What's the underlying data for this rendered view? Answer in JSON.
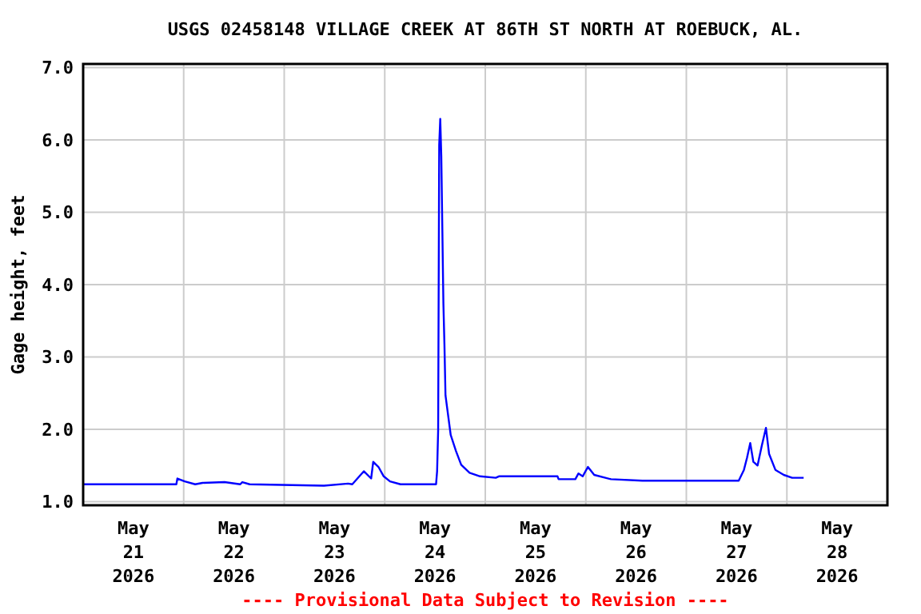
{
  "chart_data": {
    "type": "line",
    "title": "USGS 02458148 VILLAGE CREEK AT 86TH ST NORTH AT ROEBUCK, AL.",
    "ylabel": "Gage height, feet",
    "annotations": [
      "---- Provisional Data Subject to Revision ----"
    ],
    "xlim": [
      "2026-05-21T00:00",
      "2026-05-29T00:00"
    ],
    "xticks": [
      {
        "value": "2026-05-21T00:00",
        "label": null
      },
      {
        "value": "2026-05-21T12:00",
        "label": "May\n21\n2026"
      },
      {
        "value": "2026-05-22T00:00",
        "label": null
      },
      {
        "value": "2026-05-22T12:00",
        "label": "May\n22\n2026"
      },
      {
        "value": "2026-05-23T00:00",
        "label": null
      },
      {
        "value": "2026-05-23T12:00",
        "label": "May\n23\n2026"
      },
      {
        "value": "2026-05-24T00:00",
        "label": null
      },
      {
        "value": "2026-05-24T12:00",
        "label": "May\n24\n2026"
      },
      {
        "value": "2026-05-25T00:00",
        "label": null
      },
      {
        "value": "2026-05-25T12:00",
        "label": "May\n25\n2026"
      },
      {
        "value": "2026-05-26T00:00",
        "label": null
      },
      {
        "value": "2026-05-26T12:00",
        "label": "May\n26\n2026"
      },
      {
        "value": "2026-05-27T00:00",
        "label": null
      },
      {
        "value": "2026-05-27T12:00",
        "label": "May\n27\n2026"
      },
      {
        "value": "2026-05-28T00:00",
        "label": null
      },
      {
        "value": "2026-05-28T12:00",
        "label": "May\n28\n2026"
      },
      {
        "value": "2026-05-29T00:00",
        "label": null
      }
    ],
    "ylim": [
      0.95,
      7.05
    ],
    "yticks": [
      {
        "value": 1,
        "label": "1.0"
      },
      {
        "value": 2,
        "label": "2.0"
      },
      {
        "value": 3,
        "label": "3.0"
      },
      {
        "value": 4,
        "label": "4.0"
      },
      {
        "value": 5,
        "label": "5.0"
      },
      {
        "value": 6,
        "label": "6.0"
      },
      {
        "value": 7,
        "label": "7.0"
      }
    ],
    "grid": true,
    "marker": "none",
    "line_style": "solid",
    "series": [
      {
        "color": "#0000ff",
        "x": [
          "2026-05-21T00:00",
          "2026-05-21T22:15",
          "2026-05-21T22:30",
          "2026-05-22T00:15",
          "2026-05-22T02:45",
          "2026-05-22T04:30",
          "2026-05-22T09:45",
          "2026-05-22T13:30",
          "2026-05-22T14:00",
          "2026-05-22T15:45",
          "2026-05-23T09:30",
          "2026-05-23T15:15",
          "2026-05-23T16:15",
          "2026-05-23T19:00",
          "2026-05-23T20:45",
          "2026-05-23T21:15",
          "2026-05-23T22:30",
          "2026-05-23T23:45",
          "2026-05-24T01:15",
          "2026-05-24T03:45",
          "2026-05-24T12:15",
          "2026-05-24T12:30",
          "2026-05-24T12:45",
          "2026-05-24T13:00",
          "2026-05-24T13:15",
          "2026-05-24T13:30",
          "2026-05-24T14:00",
          "2026-05-24T14:15",
          "2026-05-24T14:30",
          "2026-05-24T15:00",
          "2026-05-24T15:45",
          "2026-05-24T17:00",
          "2026-05-24T18:15",
          "2026-05-24T20:15",
          "2026-05-24T22:45",
          "2026-05-25T02:30",
          "2026-05-25T03:15",
          "2026-05-25T06:00",
          "2026-05-25T17:15",
          "2026-05-25T17:30",
          "2026-05-25T21:30",
          "2026-05-25T22:15",
          "2026-05-25T23:15",
          "2026-05-26T00:30",
          "2026-05-26T02:00",
          "2026-05-26T06:00",
          "2026-05-26T13:30",
          "2026-05-27T12:30",
          "2026-05-27T13:45",
          "2026-05-27T14:30",
          "2026-05-27T15:15",
          "2026-05-27T16:00",
          "2026-05-27T17:00",
          "2026-05-27T18:00",
          "2026-05-27T19:00",
          "2026-05-27T19:45",
          "2026-05-27T21:15",
          "2026-05-27T23:15",
          "2026-05-28T01:15",
          "2026-05-28T04:00"
        ],
        "values": [
          1.24,
          1.24,
          1.32,
          1.28,
          1.24,
          1.26,
          1.27,
          1.24,
          1.27,
          1.24,
          1.22,
          1.25,
          1.24,
          1.42,
          1.32,
          1.55,
          1.48,
          1.35,
          1.28,
          1.24,
          1.24,
          1.42,
          1.99,
          5.93,
          6.29,
          5.78,
          3.74,
          3.17,
          2.47,
          2.25,
          1.92,
          1.7,
          1.51,
          1.4,
          1.35,
          1.33,
          1.35,
          1.35,
          1.35,
          1.31,
          1.31,
          1.39,
          1.35,
          1.48,
          1.37,
          1.31,
          1.29,
          1.29,
          1.44,
          1.61,
          1.81,
          1.55,
          1.5,
          1.77,
          2.02,
          1.66,
          1.44,
          1.37,
          1.33,
          1.33
        ]
      }
    ]
  }
}
